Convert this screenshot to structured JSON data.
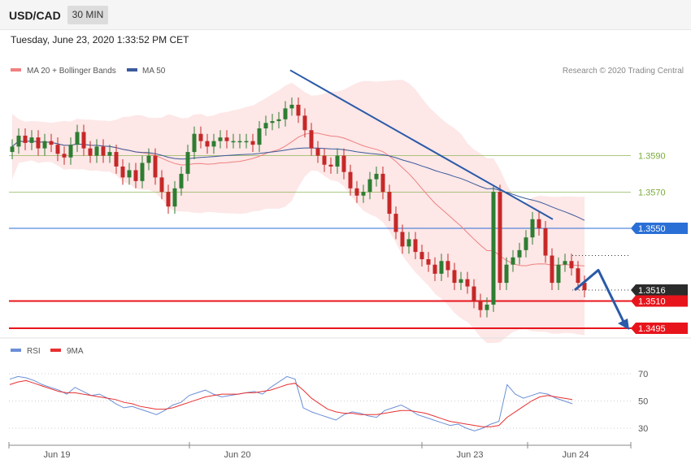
{
  "header": {
    "symbol": "USD/CAD",
    "timeframe": "30 MIN"
  },
  "timestamp": "Tuesday, June 23, 2020 1:33:52 PM CET",
  "legend": {
    "ma20_label": "MA 20 + Bollinger Bands",
    "ma50_label": "MA 50",
    "rsi_label": "RSI",
    "ma9_label": "9MA"
  },
  "copyright": "Research © 2020 Trading Central",
  "colors": {
    "up": "#2e7d32",
    "down": "#c62828",
    "ma20": "#f08080",
    "ma50": "#3a5a9a",
    "band": "#fde4e4",
    "support": "#e8141c",
    "resistance_line": "#2a6fd6",
    "level_green": "#7bab3a",
    "price_box": "#2b2b2b",
    "rsi": "#6b8fd6",
    "rsi_ma": "#e83030",
    "arrow": "#2a5aa8"
  },
  "price_axis": {
    "min": 1.349,
    "max": 1.3648
  },
  "levels": [
    {
      "value": 1.359,
      "label": "1.3590",
      "kind": "green"
    },
    {
      "value": 1.357,
      "label": "1.3570",
      "kind": "green"
    },
    {
      "value": 1.355,
      "label": "1.3550",
      "kind": "blue"
    },
    {
      "value": 1.3516,
      "label": "1.3516",
      "kind": "current"
    },
    {
      "value": 1.351,
      "label": "1.3510",
      "kind": "red"
    },
    {
      "value": 1.3495,
      "label": "1.3495",
      "kind": "red"
    }
  ],
  "rsi_axis": {
    "ticks": [
      70,
      50,
      30
    ]
  },
  "x_labels": [
    "Jun 19",
    "Jun 20",
    "Jun 23",
    "Jun 24"
  ],
  "chart_data": {
    "type": "candlestick",
    "instrument": "USD/CAD",
    "interval": "30 MIN",
    "ohlc_generated_from_closes": [
      1.3595,
      1.3601,
      1.3597,
      1.36,
      1.3594,
      1.3598,
      1.3596,
      1.3591,
      1.3589,
      1.3596,
      1.3603,
      1.3594,
      1.359,
      1.3595,
      1.359,
      1.3592,
      1.3584,
      1.3578,
      1.3582,
      1.3576,
      1.3586,
      1.359,
      1.3578,
      1.357,
      1.3562,
      1.3572,
      1.358,
      1.3592,
      1.3602,
      1.3598,
      1.3595,
      1.3598,
      1.36,
      1.3598,
      1.3598,
      1.3598,
      1.3598,
      1.3596,
      1.3605,
      1.3608,
      1.3609,
      1.361,
      1.3616,
      1.3618,
      1.3612,
      1.3604,
      1.3594,
      1.359,
      1.3585,
      1.3584,
      1.359,
      1.3581,
      1.3572,
      1.3568,
      1.357,
      1.3577,
      1.358,
      1.357,
      1.3558,
      1.3548,
      1.354,
      1.3544,
      1.3537,
      1.3533,
      1.353,
      1.3525,
      1.3532,
      1.3527,
      1.352,
      1.3522,
      1.3518,
      1.351,
      1.3505,
      1.3508,
      1.357,
      1.352,
      1.353,
      1.3534,
      1.3538,
      1.3545,
      1.3555,
      1.355,
      1.3535,
      1.352,
      1.353,
      1.3532,
      1.3528,
      1.352,
      1.3516
    ],
    "rsi": [
      66,
      68,
      67,
      65,
      62,
      60,
      58,
      55,
      60,
      57,
      54,
      55,
      52,
      48,
      45,
      46,
      44,
      42,
      40,
      43,
      47,
      49,
      54,
      56,
      58,
      55,
      53,
      54,
      55,
      56,
      57,
      55,
      60,
      64,
      68,
      66,
      45,
      42,
      40,
      38,
      36,
      40,
      42,
      41,
      39,
      38,
      43,
      45,
      47,
      44,
      40,
      38,
      36,
      34,
      32,
      33,
      30,
      28,
      30,
      33,
      35,
      62,
      55,
      52,
      54,
      56,
      55,
      52,
      50,
      48
    ],
    "rsi_ma": [
      62,
      64,
      65,
      63,
      61,
      59,
      57,
      56,
      56,
      55,
      54,
      53,
      52,
      51,
      49,
      48,
      46,
      45,
      44,
      44,
      45,
      47,
      49,
      51,
      53,
      54,
      55,
      55,
      55,
      56,
      56,
      57,
      58,
      60,
      62,
      63,
      58,
      52,
      48,
      44,
      42,
      41,
      41,
      40,
      40,
      40,
      41,
      42,
      43,
      43,
      42,
      41,
      39,
      37,
      35,
      34,
      33,
      32,
      31,
      31,
      32,
      38,
      42,
      46,
      50,
      53,
      54,
      53,
      52,
      51
    ],
    "trendline": {
      "from": 1.3637,
      "to": 1.3555
    },
    "projection": {
      "from": 1.3516,
      "via": 1.3527,
      "to": 1.3495
    }
  }
}
